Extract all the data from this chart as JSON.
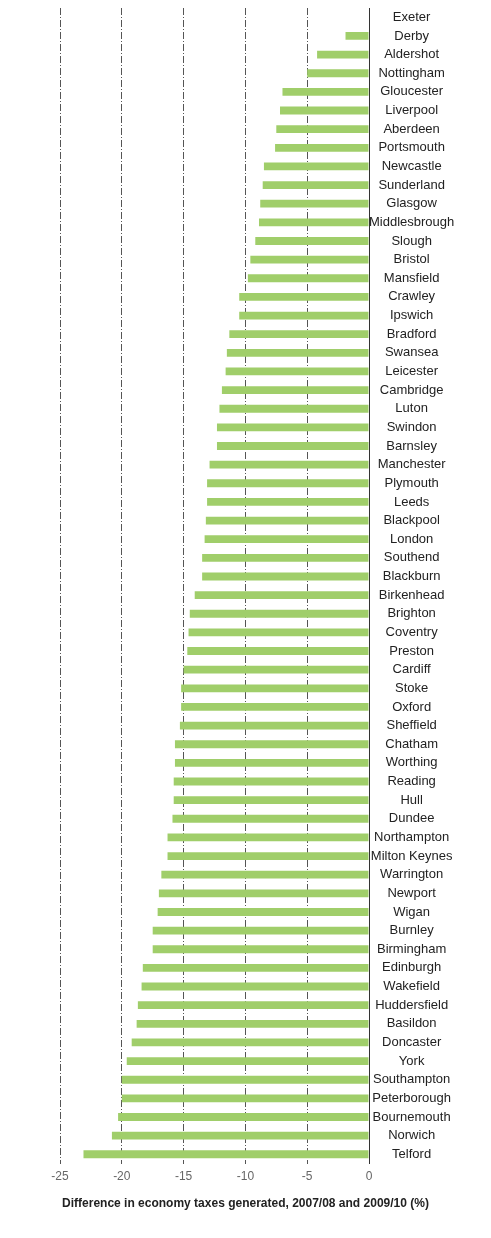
{
  "chart_data": {
    "type": "bar",
    "orientation": "horizontal",
    "xlabel": "Difference in economy taxes generated, 2007/08 and 2009/10 (%)",
    "categories": [
      "Exeter",
      "Derby",
      "Aldershot",
      "Nottingham",
      "Gloucester",
      "Liverpool",
      "Aberdeen",
      "Portsmouth",
      "Newcastle",
      "Sunderland",
      "Glasgow",
      "Middlesbrough",
      "Slough",
      "Bristol",
      "Mansfield",
      "Crawley",
      "Ipswich",
      "Bradford",
      "Swansea",
      "Leicester",
      "Cambridge",
      "Luton",
      "Swindon",
      "Barnsley",
      "Manchester",
      "Plymouth",
      "Leeds",
      "Blackpool",
      "London",
      "Southend",
      "Blackburn",
      "Birkenhead",
      "Brighton",
      "Coventry",
      "Preston",
      "Cardiff",
      "Stoke",
      "Oxford",
      "Sheffield",
      "Chatham",
      "Worthing",
      "Reading",
      "Hull",
      "Dundee",
      "Northampton",
      "Milton Keynes",
      "Warrington",
      "Newport",
      "Wigan",
      "Burnley",
      "Birmingham",
      "Edinburgh",
      "Wakefield",
      "Huddersfield",
      "Basildon",
      "Doncaster",
      "York",
      "Southampton",
      "Peterborough",
      "Bournemouth",
      "Norwich",
      "Telford"
    ],
    "values": [
      0,
      -1.9,
      -4.2,
      -5.0,
      -7.0,
      -7.2,
      -7.5,
      -7.6,
      -8.5,
      -8.6,
      -8.8,
      -8.9,
      -9.2,
      -9.6,
      -9.8,
      -10.5,
      -10.5,
      -11.3,
      -11.5,
      -11.6,
      -11.9,
      -12.1,
      -12.3,
      -12.3,
      -12.9,
      -13.1,
      -13.1,
      -13.2,
      -13.3,
      -13.5,
      -13.5,
      -14.1,
      -14.5,
      -14.6,
      -14.7,
      -15.0,
      -15.2,
      -15.2,
      -15.3,
      -15.7,
      -15.7,
      -15.8,
      -15.8,
      -15.9,
      -16.3,
      -16.3,
      -16.8,
      -17.0,
      -17.1,
      -17.5,
      -17.5,
      -18.3,
      -18.4,
      -18.7,
      -18.8,
      -19.2,
      -19.6,
      -20.0,
      -20.0,
      -20.3,
      -20.8,
      -23.1
    ],
    "color": "#a0ce6a",
    "xlim": [
      -25,
      0
    ],
    "xticks": [
      -25,
      -20,
      -15,
      -10,
      -5,
      0
    ],
    "grid": "x"
  }
}
